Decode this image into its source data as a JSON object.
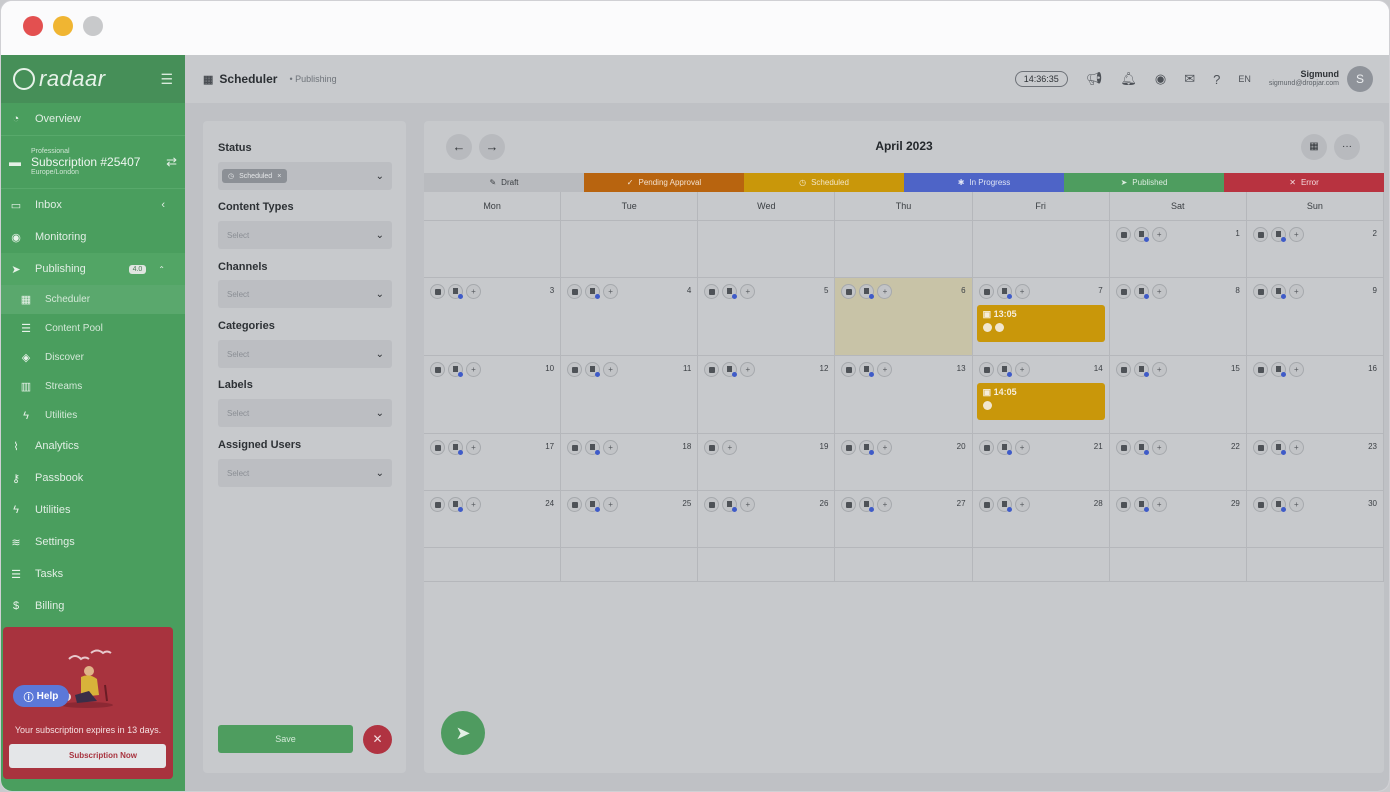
{
  "window": {
    "dots": [
      "#e35050",
      "#f0b532",
      "#c8c9cb"
    ]
  },
  "sidebar": {
    "logo": "radaar",
    "nav_top": [
      {
        "label": "Overview",
        "icon": "gauge-icon"
      }
    ],
    "subscription": {
      "tier": "Professional",
      "name": "Subscription #25407",
      "tz": "Europe/London"
    },
    "nav": [
      {
        "label": "Inbox",
        "icon": "inbox-icon",
        "extra": "‹"
      },
      {
        "label": "Monitoring",
        "icon": "eye-icon"
      },
      {
        "label": "Publishing",
        "icon": "paper-plane-icon",
        "badge": "4.0"
      }
    ],
    "publishing_sub": [
      {
        "label": "Scheduler",
        "icon": "calendar-icon"
      },
      {
        "label": "Content Pool",
        "icon": "list-icon"
      },
      {
        "label": "Discover",
        "icon": "compass-icon"
      },
      {
        "label": "Streams",
        "icon": "columns-icon"
      },
      {
        "label": "Utilities",
        "icon": "bolt-icon"
      }
    ],
    "nav_bottom": [
      {
        "label": "Analytics",
        "icon": "chart-line-icon"
      },
      {
        "label": "Passbook",
        "icon": "key-icon"
      },
      {
        "label": "Utilities",
        "icon": "bolt-icon"
      },
      {
        "label": "Settings",
        "icon": "sliders-icon"
      },
      {
        "label": "Tasks",
        "icon": "tasks-icon"
      },
      {
        "label": "Billing",
        "icon": "billing-icon"
      }
    ],
    "promo": {
      "text": "Your subscription expires in 13 days.",
      "button": "Subscription Now"
    },
    "help": "Help"
  },
  "topbar": {
    "title": "Scheduler",
    "crumb": "• Publishing",
    "clock": "14:36:35",
    "lang": "EN",
    "user_name": "Sigmund",
    "user_email": "sigmund@dropjar.com",
    "avatar": "S"
  },
  "filters": {
    "status_label": "Status",
    "status_chip": "Scheduled",
    "fields": [
      {
        "label": "Content Types",
        "placeholder": "Select"
      },
      {
        "label": "Channels",
        "placeholder": "Select"
      },
      {
        "label": "Categories",
        "placeholder": "Select"
      },
      {
        "label": "Labels",
        "placeholder": "Select"
      },
      {
        "label": "Assigned Users",
        "placeholder": "Select"
      }
    ],
    "save": "Save"
  },
  "calendar": {
    "month": "April 2023",
    "legend": [
      {
        "label": "Draft",
        "color": "#b9bbbf",
        "text": "#3a3e42",
        "icon": "✎"
      },
      {
        "label": "Pending Approval",
        "color": "#b8640f",
        "text": "#f3e2d0",
        "icon": "✓"
      },
      {
        "label": "Scheduled",
        "color": "#c9970a",
        "text": "#f3e6c6",
        "icon": "◷"
      },
      {
        "label": "In Progress",
        "color": "#4e64c7",
        "text": "#e0e5f5",
        "icon": "✱"
      },
      {
        "label": "Published",
        "color": "#4e9d5f",
        "text": "#dcecdf",
        "icon": "➤"
      },
      {
        "label": "Error",
        "color": "#b83340",
        "text": "#f3dcdf",
        "icon": "✕"
      }
    ],
    "days": [
      "Mon",
      "Tue",
      "Wed",
      "Thu",
      "Fri",
      "Sat",
      "Sun"
    ],
    "weeks": [
      [
        "",
        "",
        "",
        "",
        "",
        "1",
        "2"
      ],
      [
        "3",
        "4",
        "5",
        "6",
        "7",
        "8",
        "9"
      ],
      [
        "10",
        "11",
        "12",
        "13",
        "14",
        "15",
        "16"
      ],
      [
        "17",
        "18",
        "19",
        "20",
        "21",
        "22",
        "23"
      ],
      [
        "24",
        "25",
        "26",
        "27",
        "28",
        "29",
        "30"
      ],
      [
        "",
        "",
        "",
        "",
        "",
        "",
        ""
      ]
    ],
    "today": "6",
    "events": [
      {
        "day": "7",
        "time": "13:05"
      },
      {
        "day": "14",
        "time": "14:05"
      }
    ]
  }
}
